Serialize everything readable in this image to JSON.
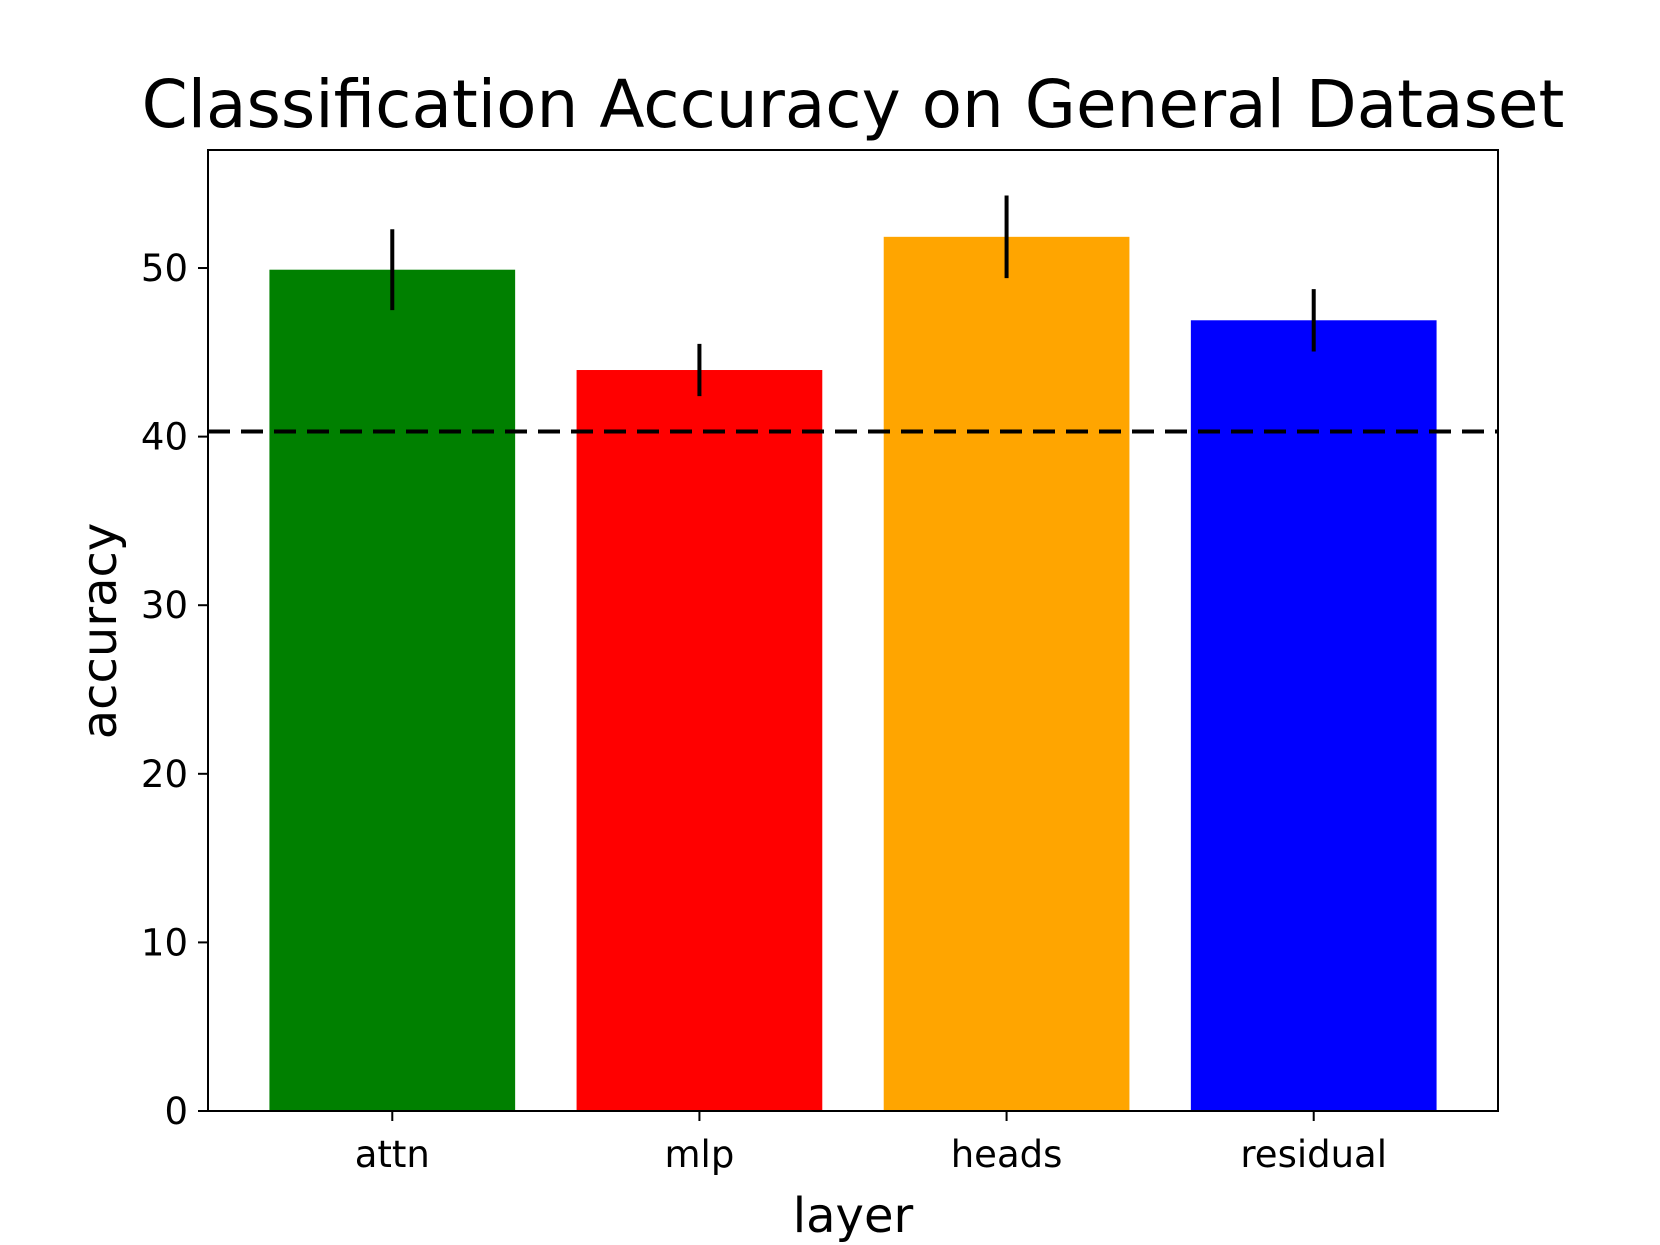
{
  "chart_data": {
    "type": "bar",
    "title": "Classification Accuracy on General Dataset",
    "xlabel": "layer",
    "ylabel": "accuracy",
    "categories": [
      "attn",
      "mlp",
      "heads",
      "residual"
    ],
    "values": [
      49.9,
      43.95,
      51.85,
      46.9
    ],
    "errors": [
      2.4,
      1.55,
      2.45,
      1.85
    ],
    "colors": [
      "#008000",
      "#ff0000",
      "#ffa500",
      "#0000ff"
    ],
    "ylim": [
      0,
      57
    ],
    "yticks": [
      "0",
      "10",
      "20",
      "30",
      "40",
      "50"
    ],
    "baseline": 40.3,
    "baseline_style": "dashed",
    "grid": false,
    "legend": "none"
  }
}
